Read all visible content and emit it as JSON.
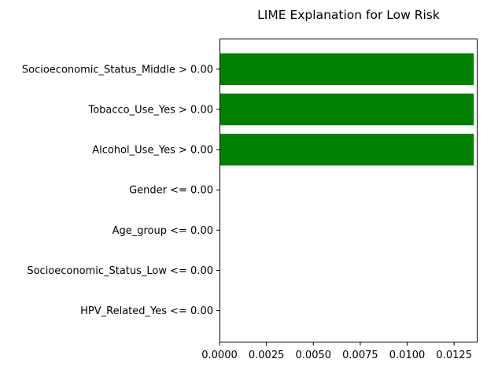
{
  "chart_data": {
    "type": "bar",
    "orientation": "horizontal",
    "title": "LIME Explanation for Low Risk",
    "xlabel": "",
    "ylabel": "",
    "categories": [
      "Socioeconomic_Status_Middle > 0.00",
      "Tobacco_Use_Yes > 0.00",
      "Alcohol_Use_Yes > 0.00",
      "Gender <= 0.00",
      "Age_group <= 0.00",
      "Socioeconomic_Status_Low <= 0.00",
      "HPV_Related_Yes <= 0.00"
    ],
    "values": [
      0.01355,
      0.01355,
      0.01355,
      0,
      0,
      0,
      0
    ],
    "xlim": [
      0,
      0.01375
    ],
    "xticks": [
      "0.0000",
      "0.0025",
      "0.0050",
      "0.0075",
      "0.0100",
      "0.0125"
    ],
    "xtick_values": [
      0,
      0.0025,
      0.005,
      0.0075,
      0.01,
      0.0125
    ],
    "bar_color": "#008000",
    "grid": false,
    "legend": "none"
  }
}
